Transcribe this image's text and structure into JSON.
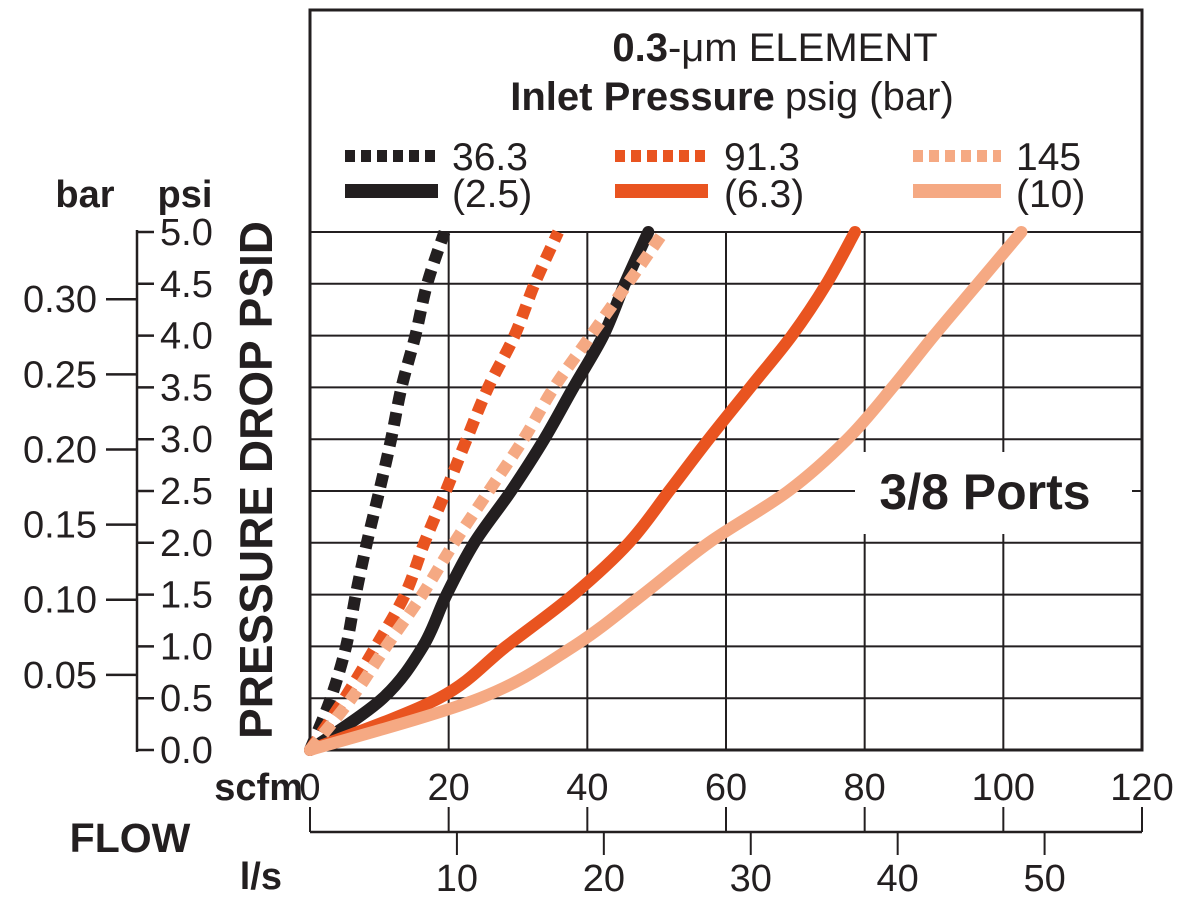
{
  "chart_data": {
    "type": "line",
    "title": {
      "bold": "0.3",
      "rest": "-μm ELEMENT"
    },
    "subtitle": {
      "bold": "Inlet Pressure",
      "rest": "psig (bar)"
    },
    "annotation": "3/8 Ports",
    "legend_position": "top",
    "grid": {
      "x_step_scfm": 20,
      "y_step_psi": 0.5,
      "color": "#231F20",
      "on": true
    },
    "colors": {
      "black": "#231F20",
      "orange": "#E95420",
      "salmon": "#F5A983"
    },
    "legend": {
      "columns": [
        {
          "dashed_label": "36.3",
          "solid_label": "(2.5)",
          "color": "#231F20"
        },
        {
          "dashed_label": "91.3",
          "solid_label": "(6.3)",
          "color": "#E95420"
        },
        {
          "dashed_label": "145",
          "solid_label": "(10)",
          "color": "#F5A983"
        }
      ]
    },
    "x_axis": {
      "label": "FLOW",
      "range_scfm": [
        0,
        120
      ],
      "scfm": {
        "header": "scfm",
        "ticks": [
          "0",
          "20",
          "40",
          "60",
          "80",
          "100",
          "120"
        ]
      },
      "ls": {
        "header": "l/s",
        "ticks": [
          "10",
          "20",
          "30",
          "40",
          "50"
        ],
        "scfm_per_ls": 2.119
      }
    },
    "y_axis": {
      "label": "PRESSURE DROP PSID",
      "range_psi": [
        0,
        5
      ],
      "psi": {
        "header": "psi",
        "ticks": [
          "0.0",
          "0.5",
          "1.0",
          "1.5",
          "2.0",
          "2.5",
          "3.0",
          "3.5",
          "4.0",
          "4.5",
          "5.0"
        ]
      },
      "bar": {
        "header": "bar",
        "ticks": [
          "0.05",
          "0.10",
          "0.15",
          "0.20",
          "0.25",
          "0.30"
        ],
        "psi_per_bar": 14.504
      }
    },
    "series": [
      {
        "name": "36.3 psig",
        "legend_label": "36.3",
        "line": "dashed",
        "color": "#231F20",
        "points_scfm_psid": [
          [
            0,
            0
          ],
          [
            3,
            0.5
          ],
          [
            5.2,
            1.0
          ],
          [
            6.6,
            1.5
          ],
          [
            8.2,
            2.0
          ],
          [
            10,
            2.5
          ],
          [
            11.7,
            3.0
          ],
          [
            13.2,
            3.5
          ],
          [
            15.2,
            4.0
          ],
          [
            16.9,
            4.5
          ],
          [
            19.4,
            5.0
          ]
        ]
      },
      {
        "name": "2.5 bar",
        "legend_label": "(2.5)",
        "line": "solid",
        "color": "#231F20",
        "points_scfm_psid": [
          [
            0,
            0
          ],
          [
            10.5,
            0.5
          ],
          [
            16.3,
            1.0
          ],
          [
            19.7,
            1.5
          ],
          [
            23.7,
            2.0
          ],
          [
            29,
            2.5
          ],
          [
            33.8,
            3.0
          ],
          [
            38,
            3.5
          ],
          [
            42.3,
            4.0
          ],
          [
            45.4,
            4.5
          ],
          [
            48.8,
            5.0
          ]
        ]
      },
      {
        "name": "91.3 psig",
        "legend_label": "91.3",
        "line": "dashed",
        "color": "#E95420",
        "points_scfm_psid": [
          [
            0,
            0
          ],
          [
            5,
            0.5
          ],
          [
            9.5,
            1.0
          ],
          [
            13.7,
            1.5
          ],
          [
            16.5,
            2.0
          ],
          [
            19.6,
            2.5
          ],
          [
            22.6,
            3.0
          ],
          [
            25.7,
            3.5
          ],
          [
            29.5,
            4.0
          ],
          [
            32.4,
            4.5
          ],
          [
            35.8,
            5.0
          ]
        ]
      },
      {
        "name": "6.3 bar",
        "legend_label": "(6.3)",
        "line": "solid",
        "color": "#E95420",
        "points_scfm_psid": [
          [
            0,
            0
          ],
          [
            18.6,
            0.5
          ],
          [
            28.3,
            1.0
          ],
          [
            38,
            1.5
          ],
          [
            46,
            2.0
          ],
          [
            51.8,
            2.5
          ],
          [
            57.5,
            3.0
          ],
          [
            63.5,
            3.5
          ],
          [
            69.5,
            4.0
          ],
          [
            74.5,
            4.5
          ],
          [
            78.6,
            5.0
          ]
        ]
      },
      {
        "name": "145 psig",
        "legend_label": "145",
        "line": "dashed",
        "color": "#F5A983",
        "points_scfm_psid": [
          [
            0,
            0
          ],
          [
            6,
            0.5
          ],
          [
            11,
            1.0
          ],
          [
            16.2,
            1.5
          ],
          [
            20.8,
            2.0
          ],
          [
            25.8,
            2.5
          ],
          [
            30.8,
            3.0
          ],
          [
            35.2,
            3.5
          ],
          [
            40.5,
            4.0
          ],
          [
            45.8,
            4.5
          ],
          [
            51,
            5.0
          ]
        ]
      },
      {
        "name": "10 bar",
        "legend_label": "(10)",
        "line": "solid",
        "color": "#F5A983",
        "points_scfm_psid": [
          [
            0,
            0
          ],
          [
            24.5,
            0.5
          ],
          [
            38,
            1.0
          ],
          [
            48,
            1.5
          ],
          [
            57.5,
            2.0
          ],
          [
            69,
            2.5
          ],
          [
            77.5,
            3.0
          ],
          [
            84,
            3.5
          ],
          [
            90,
            4.0
          ],
          [
            96.3,
            4.5
          ],
          [
            102.6,
            5.0
          ]
        ]
      }
    ]
  }
}
